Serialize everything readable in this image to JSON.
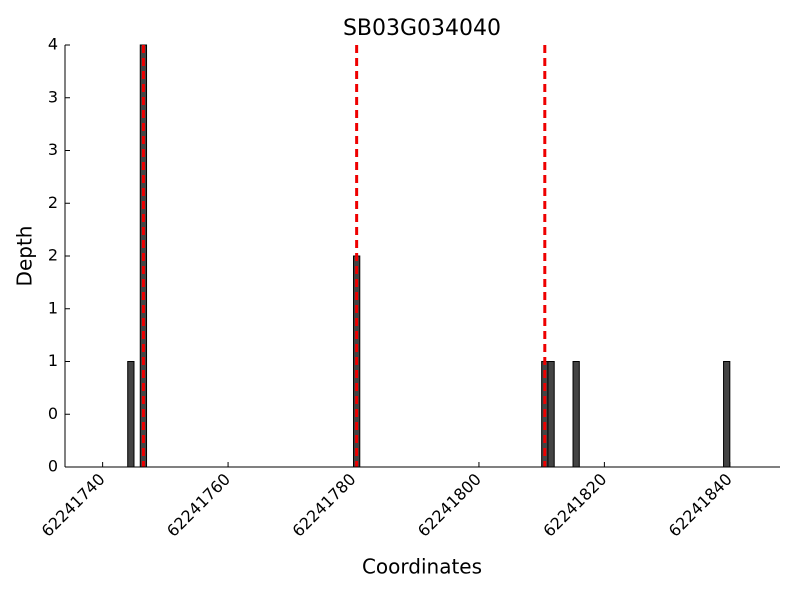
{
  "chart_data": {
    "type": "bar",
    "title": "SB03G034040",
    "x_label": "Coordinates",
    "y_label": "Depth",
    "x": [
      62241744,
      62241746,
      62241780,
      62241810,
      62241811,
      62241815,
      62241839
    ],
    "values": [
      1,
      4,
      2,
      1,
      1,
      1,
      1
    ],
    "color": "#444444",
    "vlines": [
      62241746.5,
      62241780.5,
      62241810.5
    ],
    "vline_color": "#ee0000",
    "xlim": [
      62241734,
      62241848
    ],
    "xticks": [
      62241740,
      62241760,
      62241780,
      62241800,
      62241820,
      62241840
    ],
    "ylim": [
      0,
      4
    ],
    "yticks": [
      {
        "value": 0,
        "label": "0"
      },
      {
        "value": 0.5,
        "label": "0"
      },
      {
        "value": 1,
        "label": "1"
      },
      {
        "value": 1.5,
        "label": "1"
      },
      {
        "value": 2,
        "label": "2"
      },
      {
        "value": 2.5,
        "label": "2"
      },
      {
        "value": 3,
        "label": "3"
      },
      {
        "value": 3.5,
        "label": "3"
      },
      {
        "value": 4,
        "label": "4"
      }
    ]
  }
}
